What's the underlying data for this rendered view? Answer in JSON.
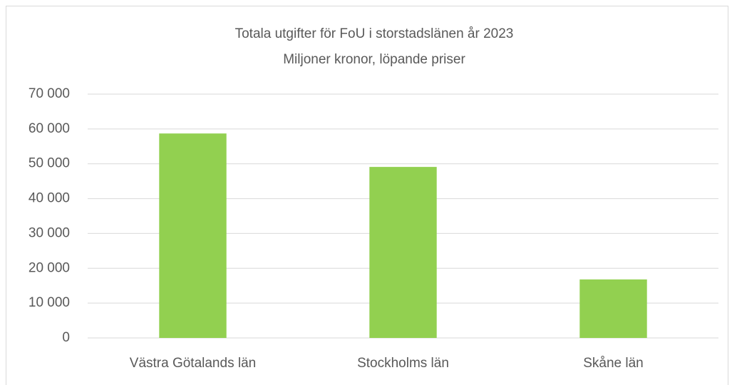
{
  "chart_data": {
    "type": "bar",
    "title": "Totala utgifter för FoU i storstadslänen år 2023",
    "subtitle": "Miljoner kronor, löpande priser",
    "categories": [
      "Västra Götalands län",
      "Stockholms län",
      "Skåne län"
    ],
    "values": [
      58700,
      49100,
      16800
    ],
    "color": "#92d050",
    "ylim": [
      0,
      70000
    ],
    "yticks": [
      0,
      {
        "value": 10000,
        "label": "10 000"
      },
      {
        "value": 20000,
        "label": "20 000"
      },
      {
        "value": 30000,
        "label": "30 000"
      },
      {
        "value": 40000,
        "label": "40 000"
      },
      {
        "value": 50000,
        "label": "50 000"
      },
      {
        "value": 60000,
        "label": "60 000"
      },
      {
        "value": 70000,
        "label": "70 000"
      }
    ],
    "grid": true
  }
}
